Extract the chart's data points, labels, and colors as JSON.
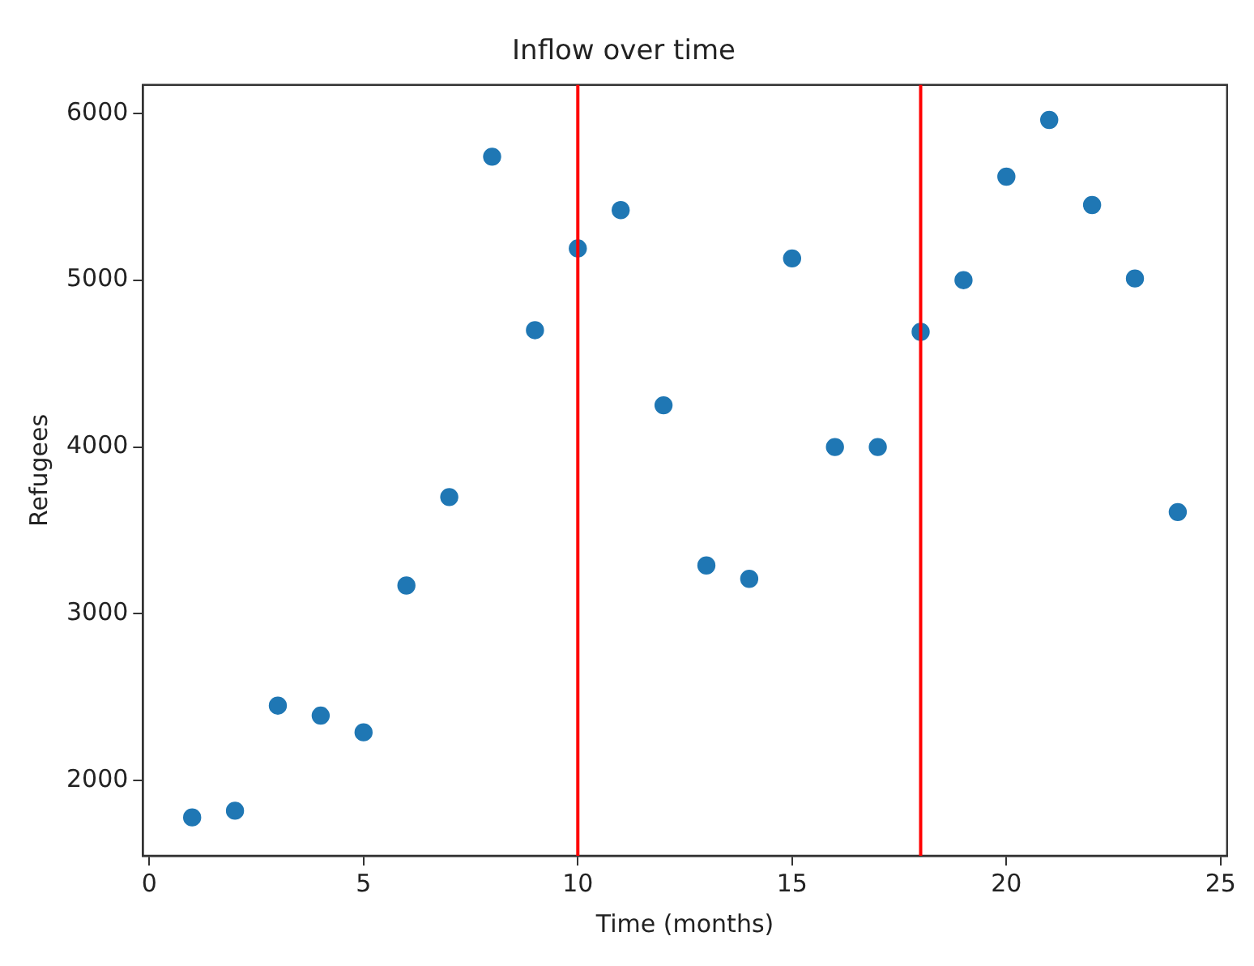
{
  "chart_data": {
    "type": "scatter",
    "title": "Inflow over time",
    "xlabel": "Time (months)",
    "ylabel": "Refugees",
    "x": [
      1,
      2,
      3,
      4,
      5,
      6,
      7,
      8,
      9,
      10,
      11,
      12,
      13,
      14,
      15,
      16,
      17,
      18,
      19,
      20,
      21,
      22,
      23,
      24
    ],
    "series": [
      {
        "color": "#1f77b4",
        "values": [
          1780,
          1820,
          2450,
          2390,
          2290,
          3170,
          3700,
          5740,
          4700,
          5190,
          5420,
          4250,
          3290,
          3210,
          5130,
          4000,
          4000,
          4690,
          5000,
          5620,
          5960,
          5450,
          5010,
          3610
        ]
      }
    ],
    "xlim": [
      -0.15,
      25.15
    ],
    "ylim": [
      1550,
      6170
    ],
    "xticks": [
      0,
      5,
      10,
      15,
      20,
      25
    ],
    "yticks": [
      2000,
      3000,
      4000,
      5000,
      6000
    ],
    "ref_lines": [
      {
        "axis": "x",
        "value": 10,
        "color": "#ff0000"
      },
      {
        "axis": "x",
        "value": 18,
        "color": "#ff0000"
      }
    ],
    "grid": false,
    "legend": false,
    "marker": "circle"
  }
}
